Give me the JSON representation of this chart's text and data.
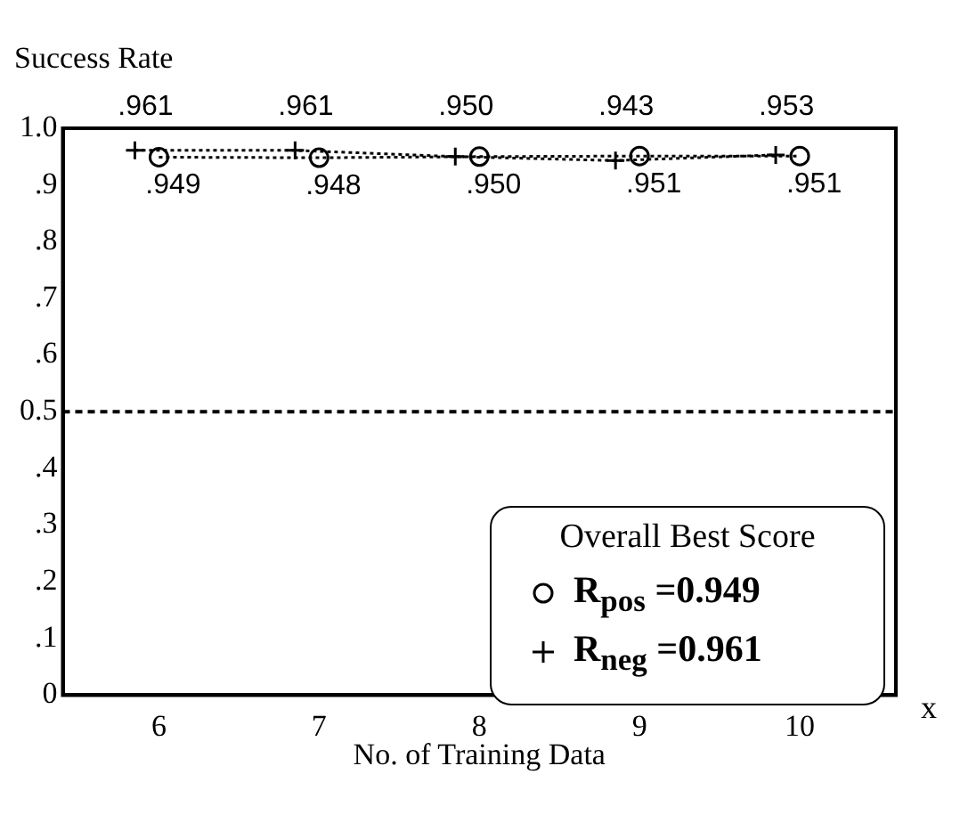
{
  "chart_data": {
    "type": "line",
    "xlabel": "No. of Training Data",
    "ylabel": "Success Rate",
    "legend_title": "Overall Best Score",
    "x": [
      6,
      7,
      8,
      9,
      10
    ],
    "series": [
      {
        "name": "R$_{pos}$ =0.949",
        "color": "#000000",
        "marker": "circle",
        "values": [
          0.949,
          0.948,
          0.95,
          0.951,
          0.951
        ],
        "value_labels": [
          ".949",
          ".948",
          ".950",
          ".951",
          ".951"
        ]
      },
      {
        "name": "R$_{neg}$ =0.961",
        "color": "#000000",
        "marker": "cross",
        "x": [
          5.85,
          6.85,
          7.85,
          8.85,
          9.85
        ],
        "values": [
          0.961,
          0.961,
          0.95,
          0.943,
          0.953
        ],
        "value_labels": [
          ".961",
          ".961",
          ".950",
          ".943",
          ".953"
        ]
      }
    ],
    "xlim": [
      5.4,
      10.6
    ],
    "xticks": [
      6,
      7,
      8,
      9,
      10
    ],
    "ylim": [
      0,
      1
    ],
    "yticks": [
      {
        "value": 0,
        "label": "0"
      },
      {
        "value": 0.1,
        "label": ".1"
      },
      {
        "value": 0.2,
        "label": ".2"
      },
      {
        "value": 0.3,
        "label": ".3"
      },
      {
        "value": 0.4,
        "label": ".4"
      },
      {
        "value": 0.5,
        "label": "0.5"
      },
      {
        "value": 0.6,
        "label": ".6"
      },
      {
        "value": 0.7,
        "label": ".7"
      },
      {
        "value": 0.8,
        "label": ".8"
      },
      {
        "value": 0.9,
        "label": ".9"
      },
      {
        "value": 1,
        "label": "1.0"
      }
    ],
    "ref_lines": [
      {
        "axis": "y",
        "value": 0.5,
        "line_style": "dashed",
        "color": "#000000"
      }
    ],
    "annotations": [
      "x"
    ],
    "line_style": "dotted",
    "grid": false,
    "legend": "bottom right"
  }
}
